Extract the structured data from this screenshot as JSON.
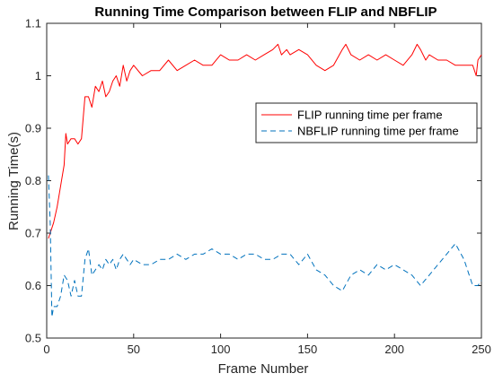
{
  "chart_data": {
    "type": "line",
    "title": "Running Time Comparison between FLIP and NBFLIP",
    "xlabel": "Frame Number",
    "ylabel": "Running Time(s)",
    "xlim": [
      0,
      250
    ],
    "ylim": [
      0.5,
      1.1
    ],
    "xticks": [
      0,
      50,
      100,
      150,
      200,
      250
    ],
    "yticks": [
      0.5,
      0.6,
      0.7,
      0.8,
      0.9,
      1,
      1.1
    ],
    "xtick_labels": [
      "0",
      "50",
      "100",
      "150",
      "200",
      "250"
    ],
    "ytick_labels": [
      "0.5",
      "0.6",
      "0.7",
      "0.8",
      "0.9",
      "1",
      "1.1"
    ],
    "grid": false,
    "legend_position": "upper-right",
    "series": [
      {
        "name": "FLIP running time per frame",
        "color": "#ff0000",
        "style": "solid",
        "x": [
          1,
          2,
          4,
          6,
          8,
          10,
          11,
          12,
          14,
          16,
          18,
          20,
          22,
          24,
          26,
          28,
          30,
          32,
          34,
          36,
          38,
          40,
          42,
          44,
          46,
          48,
          50,
          55,
          60,
          65,
          70,
          75,
          80,
          85,
          90,
          95,
          100,
          105,
          110,
          115,
          120,
          125,
          130,
          133,
          135,
          138,
          140,
          145,
          150,
          155,
          160,
          165,
          170,
          172,
          175,
          180,
          185,
          190,
          195,
          200,
          205,
          210,
          213,
          215,
          218,
          220,
          225,
          230,
          235,
          240,
          245,
          247,
          248,
          250
        ],
        "values": [
          0.69,
          0.7,
          0.72,
          0.75,
          0.79,
          0.83,
          0.89,
          0.87,
          0.88,
          0.88,
          0.87,
          0.88,
          0.96,
          0.96,
          0.94,
          0.98,
          0.97,
          0.99,
          0.96,
          0.97,
          0.99,
          1.0,
          0.98,
          1.02,
          0.99,
          1.01,
          1.02,
          1.0,
          1.01,
          1.01,
          1.03,
          1.01,
          1.02,
          1.03,
          1.02,
          1.02,
          1.04,
          1.03,
          1.03,
          1.04,
          1.03,
          1.04,
          1.05,
          1.06,
          1.04,
          1.05,
          1.04,
          1.05,
          1.04,
          1.02,
          1.01,
          1.02,
          1.05,
          1.06,
          1.04,
          1.03,
          1.04,
          1.03,
          1.04,
          1.03,
          1.02,
          1.04,
          1.06,
          1.05,
          1.03,
          1.04,
          1.03,
          1.03,
          1.02,
          1.02,
          1.02,
          1.0,
          1.03,
          1.04
        ]
      },
      {
        "name": "NBFLIP running time per frame",
        "color": "#0072bd",
        "style": "dashed",
        "x": [
          1,
          2,
          3,
          4,
          6,
          8,
          10,
          12,
          14,
          16,
          18,
          20,
          22,
          24,
          26,
          28,
          30,
          32,
          34,
          36,
          38,
          40,
          42,
          44,
          46,
          48,
          50,
          55,
          60,
          65,
          70,
          75,
          80,
          85,
          90,
          95,
          100,
          105,
          110,
          115,
          120,
          125,
          130,
          135,
          140,
          145,
          150,
          155,
          160,
          165,
          170,
          175,
          180,
          185,
          190,
          195,
          200,
          205,
          210,
          215,
          220,
          225,
          230,
          235,
          240,
          243,
          245,
          248,
          250
        ],
        "values": [
          0.81,
          0.72,
          0.54,
          0.56,
          0.56,
          0.58,
          0.62,
          0.61,
          0.58,
          0.61,
          0.58,
          0.58,
          0.65,
          0.67,
          0.62,
          0.63,
          0.64,
          0.63,
          0.65,
          0.64,
          0.65,
          0.63,
          0.65,
          0.66,
          0.65,
          0.64,
          0.65,
          0.64,
          0.64,
          0.65,
          0.65,
          0.66,
          0.65,
          0.66,
          0.66,
          0.67,
          0.66,
          0.66,
          0.65,
          0.66,
          0.66,
          0.65,
          0.65,
          0.66,
          0.66,
          0.64,
          0.66,
          0.63,
          0.62,
          0.6,
          0.59,
          0.62,
          0.63,
          0.62,
          0.64,
          0.63,
          0.64,
          0.63,
          0.62,
          0.6,
          0.62,
          0.64,
          0.66,
          0.68,
          0.65,
          0.62,
          0.6,
          0.6,
          0.61
        ]
      }
    ]
  }
}
